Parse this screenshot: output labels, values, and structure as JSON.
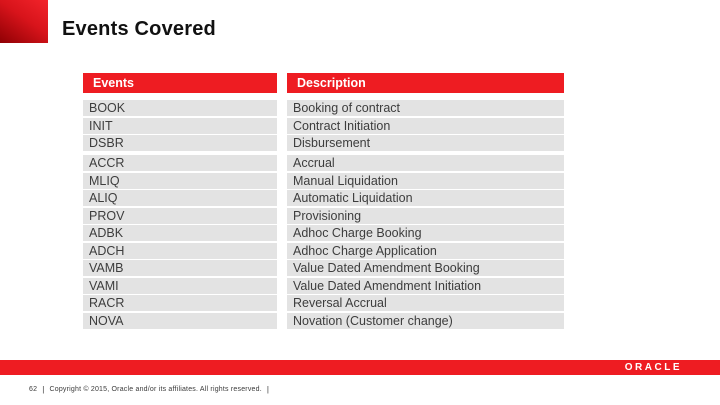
{
  "slide": {
    "title": "Events Covered",
    "page_number": "62",
    "divider": "|",
    "copyright_text": "Copyright © 2015, Oracle and/or its affiliates. All rights reserved.",
    "logo_text": "ORACLE"
  },
  "colors": {
    "accent_red": "#ee1c22",
    "accent_square_light": "#f3242b",
    "accent_square_dark": "#8f0004",
    "row_background": "#e3e3e3",
    "row_text": "#3d3d3d",
    "header_text": "#ffffff"
  },
  "table": {
    "headers": [
      "Events",
      "Description"
    ],
    "groups": [
      [
        {
          "code": "BOOK",
          "description": "Booking of contract"
        },
        {
          "code": "INIT",
          "description": "Contract Initiation"
        },
        {
          "code": "DSBR",
          "description": "Disbursement"
        }
      ],
      [
        {
          "code": "ACCR",
          "description": "Accrual"
        },
        {
          "code": "MLIQ",
          "description": "Manual Liquidation"
        },
        {
          "code": "ALIQ",
          "description": "Automatic Liquidation"
        },
        {
          "code": "PROV",
          "description": "Provisioning"
        },
        {
          "code": "ADBK",
          "description": "Adhoc Charge Booking"
        },
        {
          "code": "ADCH",
          "description": "Adhoc Charge Application"
        },
        {
          "code": "VAMB",
          "description": "Value Dated Amendment Booking"
        },
        {
          "code": "VAMI",
          "description": "Value Dated Amendment Initiation"
        },
        {
          "code": "RACR",
          "description": "Reversal Accrual"
        },
        {
          "code": "NOVA",
          "description": "Novation (Customer change)"
        }
      ]
    ]
  }
}
